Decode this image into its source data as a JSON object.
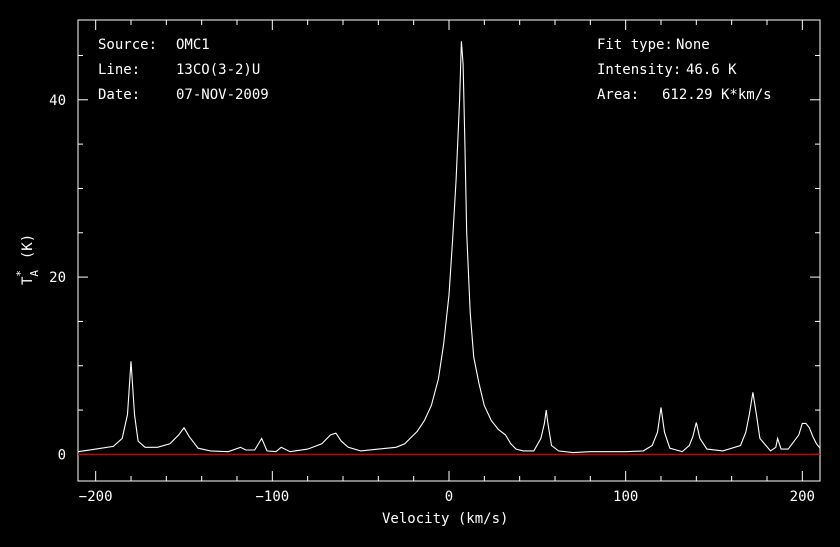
{
  "info_left": {
    "source_label": "Source:",
    "source_value": "OMC1",
    "line_label": "Line:",
    "line_value": "13CO(3-2)U",
    "date_label": "Date:",
    "date_value": "07-NOV-2009"
  },
  "info_right": {
    "fit_label": "Fit type:",
    "fit_value": "None",
    "intensity_label": "Intensity:",
    "intensity_value": "46.6 K",
    "area_label": "Area:",
    "area_value": "612.29 K*km/s"
  },
  "colors": {
    "background": "#000000",
    "spectrum": "#ffffff",
    "baseline": "#cc0000",
    "axes": "#ffffff"
  },
  "chart_data": {
    "type": "line",
    "xlabel": "Velocity (km/s)",
    "ylabel_main": "T",
    "ylabel_sup": "*",
    "ylabel_sub": "A",
    "ylabel_unit": "(K)",
    "xlim": [
      -210,
      210
    ],
    "ylim": [
      -3,
      49
    ],
    "xticks": [
      -200,
      -100,
      0,
      100,
      200
    ],
    "xtick_labels": [
      "−200",
      "−100",
      "0",
      "100",
      "200"
    ],
    "yticks": [
      0,
      20,
      40
    ],
    "ytick_labels": [
      "0",
      "20",
      "40"
    ],
    "baseline_y": 0,
    "series": [
      {
        "x": [
          -210,
          -200,
          -190,
          -185,
          -182,
          -180,
          -178,
          -176,
          -172,
          -165,
          -158,
          -153,
          -150,
          -147,
          -142,
          -135,
          -125,
          -118,
          -115,
          -110,
          -106,
          -103,
          -98,
          -95,
          -90,
          -80,
          -72,
          -67,
          -64,
          -61,
          -57,
          -50,
          -40,
          -30,
          -25,
          -22,
          -18,
          -14,
          -10,
          -6,
          -3,
          0,
          2,
          4,
          6,
          7,
          8,
          9,
          10,
          12,
          14,
          17,
          20,
          24,
          28,
          32,
          35,
          38,
          42,
          48,
          52,
          54,
          55,
          56,
          58,
          62,
          70,
          80,
          90,
          100,
          110,
          115,
          118,
          120,
          122,
          125,
          132,
          136,
          138,
          140,
          142,
          146,
          155,
          165,
          168,
          170,
          172,
          174,
          176,
          182,
          185,
          186,
          188,
          192,
          198,
          200,
          202,
          204,
          206,
          208,
          210
        ],
        "y": [
          0.3,
          0.6,
          0.9,
          1.8,
          4.5,
          10.5,
          4.5,
          1.5,
          0.8,
          0.8,
          1.2,
          2.2,
          3.0,
          2.0,
          0.7,
          0.4,
          0.3,
          0.8,
          0.5,
          0.5,
          1.8,
          0.4,
          0.3,
          0.8,
          0.3,
          0.6,
          1.2,
          2.2,
          2.4,
          1.5,
          0.8,
          0.4,
          0.6,
          0.8,
          1.2,
          1.8,
          2.6,
          3.8,
          5.5,
          8.5,
          12.5,
          18.0,
          24.0,
          31.0,
          40.0,
          46.6,
          44.0,
          35.0,
          25.0,
          16.0,
          11.0,
          8.0,
          5.5,
          3.8,
          2.8,
          2.2,
          1.2,
          0.6,
          0.4,
          0.4,
          1.8,
          3.5,
          5.0,
          3.5,
          1.0,
          0.4,
          0.2,
          0.3,
          0.3,
          0.3,
          0.4,
          1.0,
          2.5,
          5.3,
          2.5,
          0.7,
          0.3,
          1.0,
          2.0,
          3.6,
          1.8,
          0.6,
          0.4,
          1.0,
          2.5,
          4.5,
          7.0,
          4.5,
          1.8,
          0.4,
          0.8,
          1.8,
          0.6,
          0.6,
          2.2,
          3.5,
          3.5,
          3.0,
          2.0,
          1.2,
          0.7
        ]
      }
    ]
  }
}
